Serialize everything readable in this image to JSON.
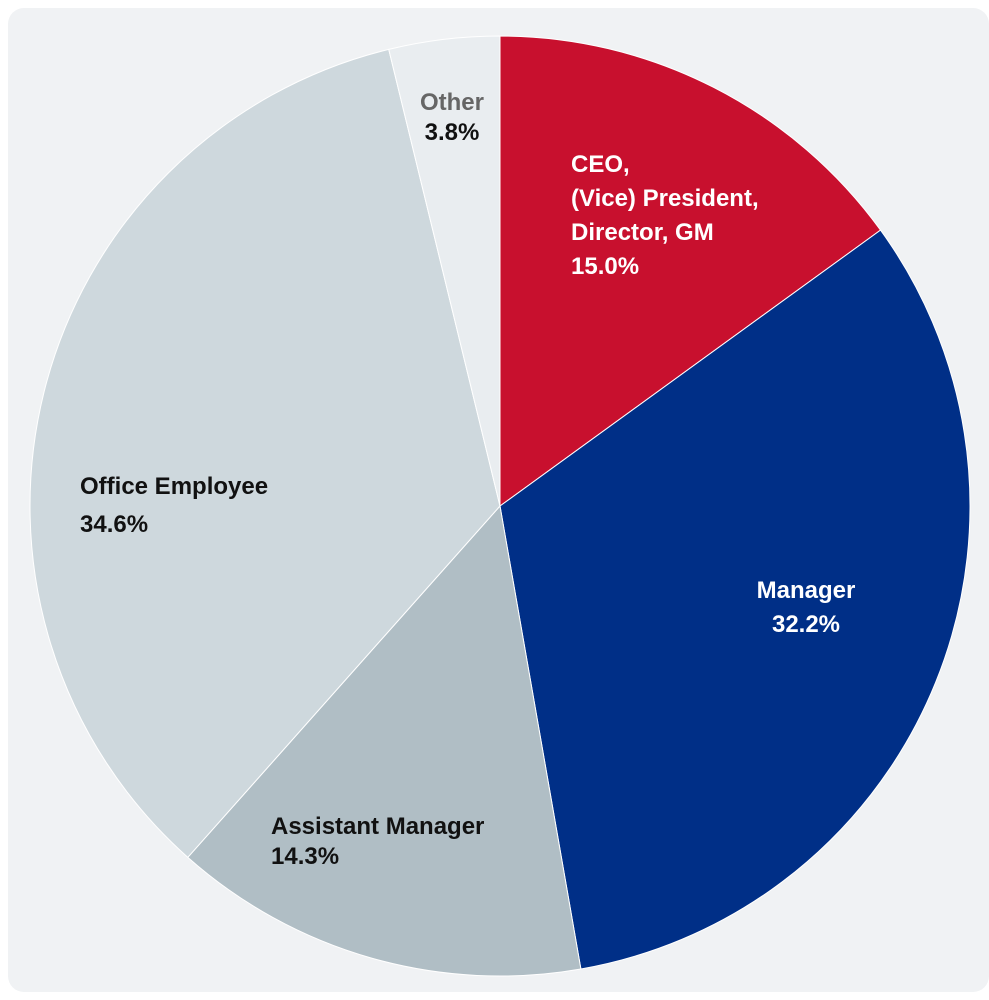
{
  "chart_data": {
    "type": "pie",
    "start_angle_deg": 0,
    "direction": "clockwise",
    "slices": [
      {
        "label_lines": [
          "CEO,",
          "(Vice) President,",
          "Director, GM"
        ],
        "value": 15.0,
        "value_text": "15.0%",
        "color": "#c8102e",
        "text_color": "#ffffff"
      },
      {
        "label_lines": [
          "Manager"
        ],
        "value": 32.2,
        "value_text": "32.2%",
        "color": "#002f87",
        "text_color": "#ffffff"
      },
      {
        "label_lines": [
          "Assistant Manager"
        ],
        "value": 14.3,
        "value_text": "14.3%",
        "color": "#b0bec5",
        "text_color": "#111111"
      },
      {
        "label_lines": [
          "Office Employee"
        ],
        "value": 34.6,
        "value_text": "34.6%",
        "color": "#ced8dd",
        "text_color": "#111111"
      },
      {
        "label_lines": [
          "Other"
        ],
        "value": 3.8,
        "value_text": "3.8%",
        "color": "#e9edf0",
        "text_color": "#111111",
        "label_color": "#666666"
      }
    ]
  }
}
